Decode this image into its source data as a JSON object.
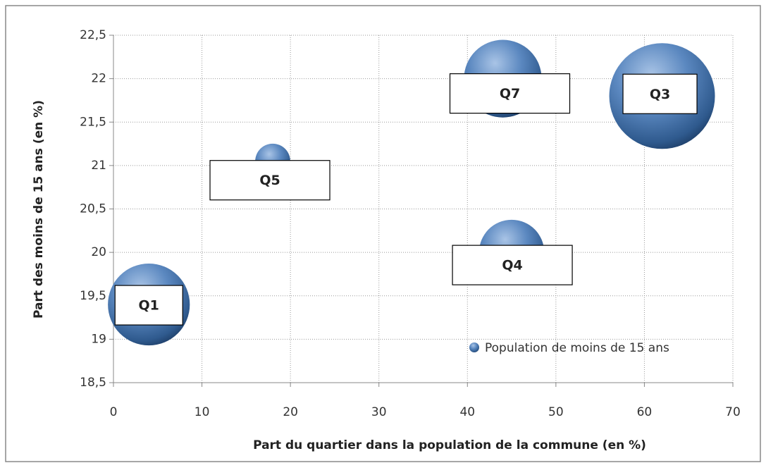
{
  "chart_data": {
    "type": "bubble",
    "xlabel": "Part du quartier dans la population de la commune (en %)",
    "ylabel": "Part des moins de 15 ans (en %)",
    "xlim": [
      0,
      70
    ],
    "xticks": [
      0,
      10,
      20,
      30,
      40,
      50,
      60,
      70
    ],
    "ylim": [
      18.5,
      22.5
    ],
    "yticks": [
      {
        "value": 18.5,
        "label": "18,5"
      },
      19,
      {
        "value": 19.5,
        "label": "19,5"
      },
      20,
      {
        "value": 20.5,
        "label": "20,5"
      },
      21,
      {
        "value": 21.5,
        "label": "21,5"
      },
      22,
      {
        "value": 22.5,
        "label": "22,5"
      }
    ],
    "grid": true,
    "legend": "lower right",
    "series": [
      {
        "name": "Population de moins de 15 ans",
        "color": "#4f81bd",
        "labels": [
          "Q1",
          "Q5",
          "Q7",
          "Q3",
          "Q4"
        ],
        "x": [
          4,
          18,
          44,
          62,
          45
        ],
        "values": [
          19.4,
          21.05,
          22.0,
          21.8,
          20.0
        ],
        "sizes": [
          6,
          1.1,
          5.4,
          10,
          3.8
        ]
      }
    ]
  }
}
